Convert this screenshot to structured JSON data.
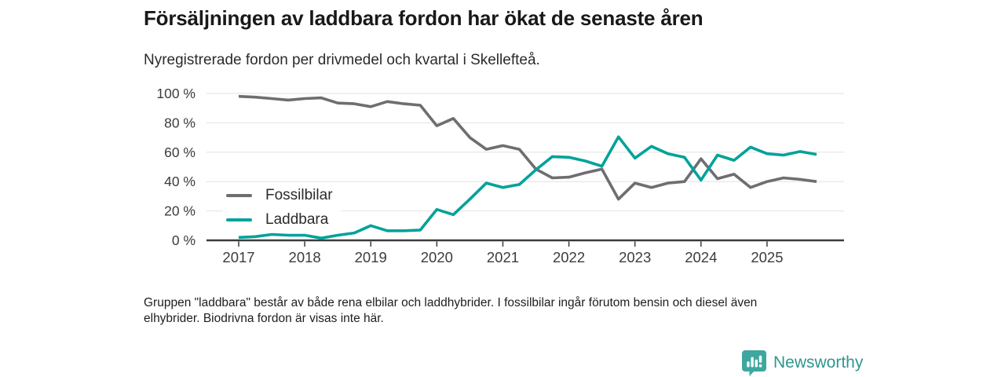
{
  "header": {
    "title": "Försäljningen av laddbara fordon har ökat de senaste åren",
    "subtitle": "Nyregistrerade fordon per drivmedel och kvartal i Skellefteå."
  },
  "chart_data": {
    "type": "line",
    "x_unit": "quarter",
    "categories": [
      "2017Q1",
      "2017Q2",
      "2017Q3",
      "2017Q4",
      "2018Q1",
      "2018Q2",
      "2018Q3",
      "2018Q4",
      "2019Q1",
      "2019Q2",
      "2019Q3",
      "2019Q4",
      "2020Q1",
      "2020Q2",
      "2020Q3",
      "2020Q4",
      "2021Q1",
      "2021Q2",
      "2021Q3",
      "2021Q4",
      "2022Q1",
      "2022Q2",
      "2022Q3",
      "2022Q4",
      "2023Q1",
      "2023Q2",
      "2023Q3",
      "2023Q4",
      "2024Q1",
      "2024Q2",
      "2024Q3",
      "2024Q4",
      "2025Q1",
      "2025Q2",
      "2025Q3",
      "2025Q4"
    ],
    "series": [
      {
        "name": "Fossilbilar",
        "color": "#6e6e72",
        "values": [
          98,
          97.5,
          96.5,
          95.5,
          96.5,
          97,
          93.5,
          93,
          91,
          94.5,
          93,
          92,
          78,
          83,
          70,
          62,
          64.5,
          62,
          48.5,
          42.5,
          43,
          46,
          48.5,
          28,
          39,
          36,
          39,
          40,
          55.5,
          42,
          45,
          36,
          40,
          42.5,
          41.5,
          40
        ]
      },
      {
        "name": "Laddbara",
        "color": "#00a29b",
        "values": [
          2,
          2.5,
          4,
          3.5,
          3.5,
          1.5,
          3.5,
          5,
          10,
          6.5,
          6.5,
          7,
          21,
          17.5,
          28,
          39,
          36,
          38,
          48,
          57,
          56.5,
          54,
          50.5,
          70.5,
          56,
          64,
          59,
          56.5,
          41,
          58,
          54.5,
          63.5,
          59,
          58,
          60.5,
          58.5
        ]
      }
    ],
    "y_ticks": [
      "0 %",
      "20 %",
      "40 %",
      "60 %",
      "80 %",
      "100 %"
    ],
    "y_tick_values": [
      0,
      20,
      40,
      60,
      80,
      100
    ],
    "x_tick_labels": [
      "2017",
      "2018",
      "2019",
      "2020",
      "2021",
      "2022",
      "2023",
      "2024",
      "2025"
    ],
    "ylim": [
      0,
      100
    ],
    "grid": "horizontal",
    "grid_color": "#e2e2e2",
    "axis_color": "#3b3b3b",
    "tick_label_color": "#3c3c3c",
    "legend_position": "inside-left"
  },
  "legend": {
    "items": [
      {
        "label": "Fossilbilar",
        "color": "#6e6e72"
      },
      {
        "label": "Laddbara",
        "color": "#00a29b"
      }
    ]
  },
  "footnote": {
    "line1": "Gruppen \"laddbara\" består av både rena elbilar och laddhybrider. I fossilbilar ingår förutom bensin och diesel även",
    "line2": "elhybrider. Biodrivna fordon är visas inte här."
  },
  "branding": {
    "name": "Newsworthy",
    "icon": "newsworthy-bar-chart-pin-icon",
    "icon_color": "#3ea79f",
    "text_color": "#2f968e"
  }
}
